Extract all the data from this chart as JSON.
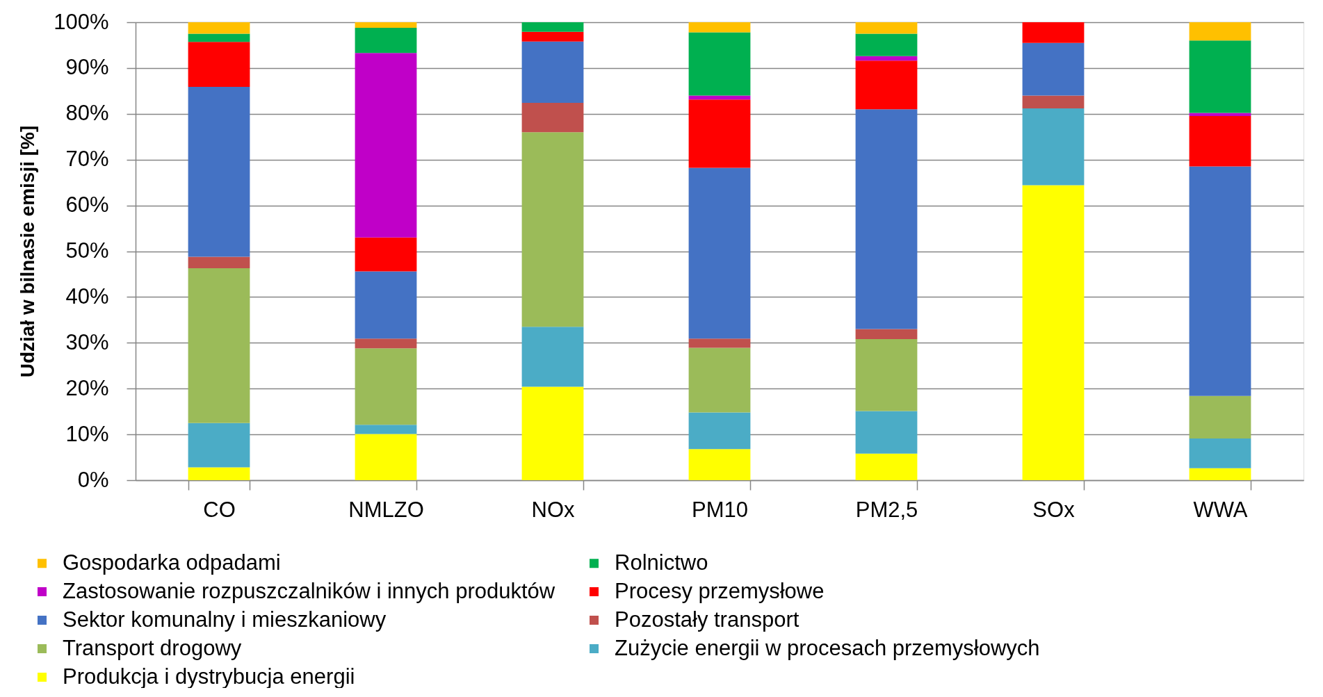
{
  "chart_data": {
    "type": "bar",
    "ylabel": "Udział w bilnasie emisji [%]",
    "categories": [
      "CO",
      "NMLZO",
      "NOx",
      "PM10",
      "PM2,5",
      "SOx",
      "WWA"
    ],
    "stacked": true,
    "ylim": [
      0,
      100
    ],
    "yticks": [
      {
        "value": 0,
        "label": "0%"
      },
      {
        "value": 10,
        "label": "10%"
      },
      {
        "value": 20,
        "label": "20%"
      },
      {
        "value": 30,
        "label": "30%"
      },
      {
        "value": 40,
        "label": "40%"
      },
      {
        "value": 50,
        "label": "50%"
      },
      {
        "value": 60,
        "label": "60%"
      },
      {
        "value": 70,
        "label": "70%"
      },
      {
        "value": 80,
        "label": "80%"
      },
      {
        "value": 90,
        "label": "90%"
      },
      {
        "value": 100,
        "label": "100%"
      }
    ],
    "grid": "y",
    "legend": "bottom left",
    "series": [
      {
        "name": "Produkcja i dystrybucja energii",
        "color": "#ffff00",
        "values": [
          2.8,
          10.1,
          20.4,
          6.8,
          5.8,
          64.4,
          2.6
        ]
      },
      {
        "name": "Zużycie energii w procesach przemysłowych",
        "color": "#4bacc6",
        "values": [
          9.7,
          2.0,
          13.1,
          8.0,
          9.3,
          16.8,
          6.5
        ]
      },
      {
        "name": "Transport drogowy",
        "color": "#9bbb59",
        "values": [
          33.8,
          16.7,
          42.5,
          14.1,
          15.7,
          null,
          9.3
        ]
      },
      {
        "name": "Pozostały transport",
        "color": "#c0504d",
        "values": [
          2.5,
          2.1,
          6.4,
          2.0,
          2.2,
          2.8,
          null
        ]
      },
      {
        "name": "Sektor komunalny i mieszkaniowy",
        "color": "#4472c4",
        "values": [
          37.1,
          14.7,
          13.4,
          37.3,
          48.0,
          11.5,
          50.1
        ]
      },
      {
        "name": "Procesy przemysłowe",
        "color": "#ff0000",
        "values": [
          9.8,
          7.4,
          2.1,
          14.9,
          10.6,
          4.5,
          11.0
        ]
      },
      {
        "name": "Zastosowanie rozpuszczalników i innych produktów",
        "color": "#c000c8",
        "values": [
          null,
          40.3,
          null,
          0.9,
          1.0,
          null,
          0.7
        ]
      },
      {
        "name": "Rolnictwo",
        "color": "#00b050",
        "values": [
          1.8,
          5.5,
          2.1,
          13.8,
          4.9,
          null,
          15.8
        ]
      },
      {
        "name": "Gospodarka odpadami",
        "color": "#ffc000",
        "values": [
          2.5,
          1.2,
          null,
          2.2,
          2.5,
          null,
          4.0
        ]
      }
    ]
  }
}
